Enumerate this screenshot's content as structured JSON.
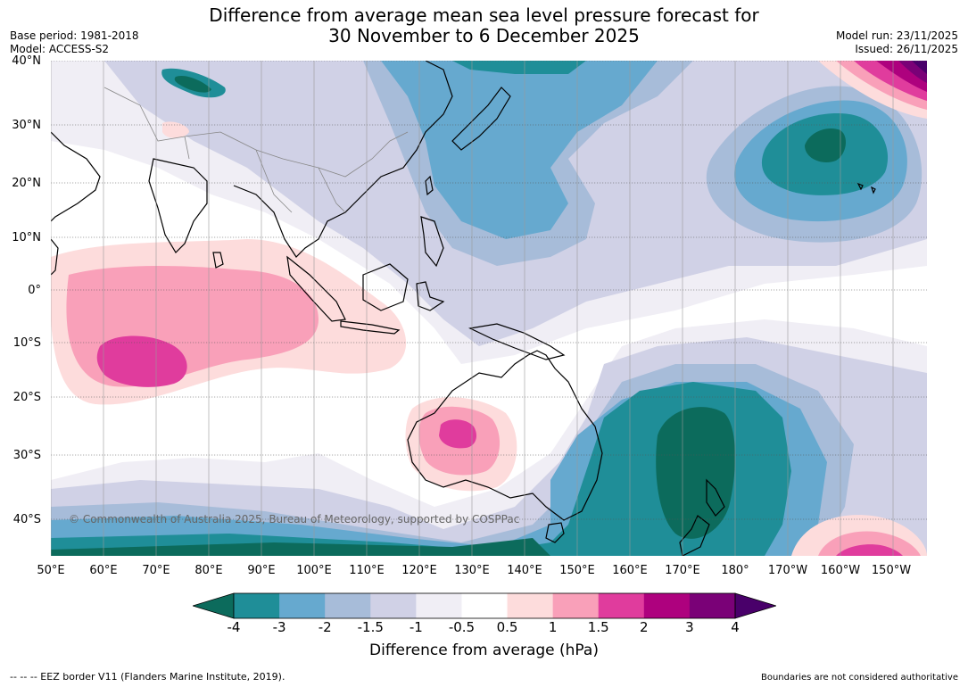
{
  "title_line1": "Difference from average mean sea level pressure forecast for",
  "title_line2": "30 November to 6 December 2025",
  "base_period": "Base period: 1981-2018",
  "model": "Model: ACCESS-S2",
  "model_run": "Model run: 23/11/2025",
  "issued": "Issued: 26/11/2025",
  "lat_labels": [
    "40°N",
    "30°N",
    "20°N",
    "10°N",
    "0°",
    "10°S",
    "20°S",
    "30°S",
    "40°S"
  ],
  "lon_labels": [
    "50°E",
    "60°E",
    "70°E",
    "80°E",
    "90°E",
    "100°E",
    "110°E",
    "120°E",
    "130°E",
    "140°E",
    "150°E",
    "160°E",
    "170°E",
    "180°",
    "170°W",
    "160°W",
    "150°W"
  ],
  "copyright": "© Commonwealth of Australia 2025, Bureau of Meteorology, supported by COSPPac",
  "colorbar": {
    "title": "Difference from average (hPa)",
    "ticks": [
      "-4",
      "-3",
      "-2",
      "-1.5",
      "-1",
      "-0.5",
      "0.5",
      "1",
      "1.5",
      "2",
      "3",
      "4"
    ],
    "colors": [
      "#0c6b5c",
      "#1f8e98",
      "#66a9cf",
      "#a7bcd9",
      "#d0d1e6",
      "#f0eef5",
      "#ffffff",
      "#fddcdc",
      "#f9a0b9",
      "#e03c9d",
      "#ae017e",
      "#7a0177",
      "#49006a"
    ]
  },
  "footer_left": "--  --  -- EEZ border V11 (Flanders Marine Institute, 2019).",
  "footer_right": "Boundaries are not considered authoritative"
}
